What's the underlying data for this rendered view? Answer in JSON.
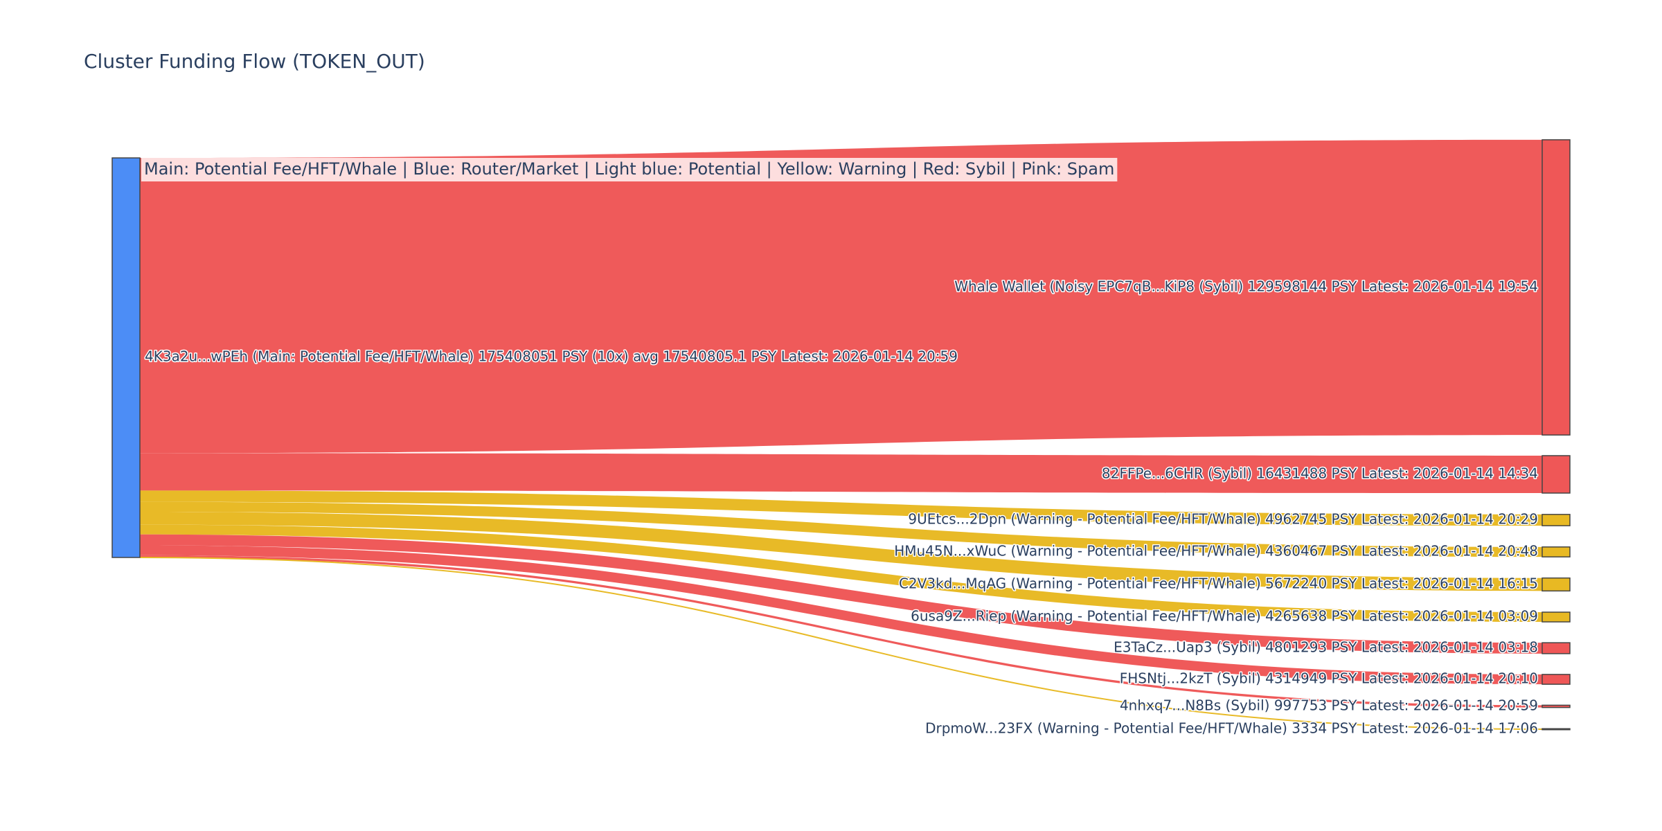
{
  "chart_data": {
    "type": "sankey",
    "title": "Cluster Funding Flow (TOKEN_OUT)",
    "legend_text": "Main: Potential Fee/HFT/Whale  |  Blue: Router/Market | Light blue: Potential | Yellow: Warning | Red: Sybil | Pink: Spam",
    "colors": {
      "main": "#4c8df6",
      "sybil": "#ef5757",
      "warning": "#e8b923",
      "legend_bg": "#fde6e6"
    },
    "source": {
      "label": "4K3a2u...wPEh (Main: Potential Fee/HFT/Whale) 175408051 PSY (10x) avg 17540805.1 PSY Latest: 2026-01-14 20:59",
      "value": 175408051,
      "category": "main"
    },
    "targets": [
      {
        "label": "Whale Wallet (Noisy  EPC7qB...KiP8 (Sybil) 129598144 PSY Latest: 2026-01-14 19:54",
        "value": 129598144,
        "category": "sybil"
      },
      {
        "label": "82FFPe...6CHR (Sybil) 16431488 PSY Latest: 2026-01-14 14:34",
        "value": 16431488,
        "category": "sybil"
      },
      {
        "label": "9UEtcs...2Dpn (Warning - Potential Fee/HFT/Whale) 4962745 PSY Latest: 2026-01-14 20:29",
        "value": 4962745,
        "category": "warning"
      },
      {
        "label": "HMu45N...xWuC (Warning - Potential Fee/HFT/Whale) 4360467 PSY Latest: 2026-01-14 20:48",
        "value": 4360467,
        "category": "warning"
      },
      {
        "label": "C2V3kd...MqAG (Warning - Potential Fee/HFT/Whale) 5672240 PSY Latest: 2026-01-14 16:15",
        "value": 5672240,
        "category": "warning"
      },
      {
        "label": "6usa9Z...Riep (Warning - Potential Fee/HFT/Whale) 4265638 PSY Latest: 2026-01-14 03:09",
        "value": 4265638,
        "category": "warning"
      },
      {
        "label": "E3TaCz...Uap3 (Sybil) 4801293 PSY Latest: 2026-01-14 03:18",
        "value": 4801293,
        "category": "sybil"
      },
      {
        "label": "FHSNtj...2kzT (Sybil) 4314949 PSY Latest: 2026-01-14 20:10",
        "value": 4314949,
        "category": "sybil"
      },
      {
        "label": "4nhxq7...N8Bs (Sybil) 997753 PSY Latest: 2026-01-14 20:59",
        "value": 997753,
        "category": "sybil"
      },
      {
        "label": "DrpmoW...23FX (Warning - Potential Fee/HFT/Whale) 3334 PSY Latest: 2026-01-14 17:06",
        "value": 3334,
        "category": "warning"
      }
    ]
  }
}
